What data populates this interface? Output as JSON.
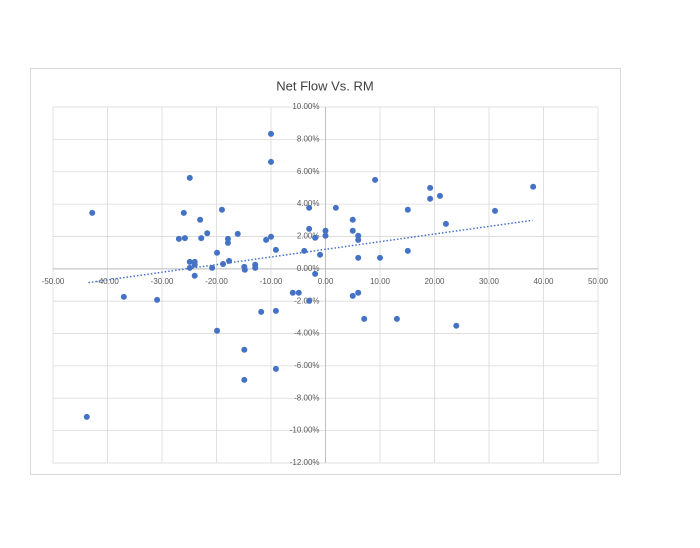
{
  "chart_data": {
    "type": "scatter",
    "title": "Net Flow Vs. RM",
    "xlim": [
      -50,
      50
    ],
    "xticks": [
      {
        "value": -50,
        "label": "-50.00"
      },
      {
        "value": -40,
        "label": "-40.00"
      },
      {
        "value": -30,
        "label": "-30.00"
      },
      {
        "value": -20,
        "label": "-20.00"
      },
      {
        "value": -10,
        "label": "-10.00"
      },
      {
        "value": 0,
        "label": "0.00"
      },
      {
        "value": 10,
        "label": "10.00"
      },
      {
        "value": 20,
        "label": "20.00"
      },
      {
        "value": 30,
        "label": "30.00"
      },
      {
        "value": 40,
        "label": "40.00"
      },
      {
        "value": 50,
        "label": "50.00"
      }
    ],
    "ylim": [
      -12,
      10
    ],
    "yticks": [
      {
        "value": 10,
        "label": "10.00%"
      },
      {
        "value": 8,
        "label": "8.00%"
      },
      {
        "value": 6,
        "label": "6.00%"
      },
      {
        "value": 4,
        "label": "4.00%"
      },
      {
        "value": 2,
        "label": "2.00%"
      },
      {
        "value": 0,
        "label": "0.00%"
      },
      {
        "value": -2,
        "label": "-2.00%"
      },
      {
        "value": -4,
        "label": "-4.00%"
      },
      {
        "value": -6,
        "label": "-6.00%"
      },
      {
        "value": -8,
        "label": "-8.00%"
      },
      {
        "value": -10,
        "label": "-10.00%"
      },
      {
        "value": -12,
        "label": "-12.00%"
      }
    ],
    "grid": true,
    "series": [
      {
        "color": "#4472c4",
        "x": [
          -42.8,
          -43.8,
          -37,
          -30.9,
          -26,
          -26.9,
          -25.8,
          -24.9,
          -24.9,
          -24.9,
          -24,
          -24,
          -24,
          -23,
          -22.8,
          -21.7,
          -20.8,
          -19.9,
          -19.9,
          -19,
          -18.8,
          -17.9,
          -17.9,
          -17.7,
          -16.1,
          -14.9,
          -14.8,
          -14.9,
          -14.9,
          -12.9,
          -12.9,
          -11.8,
          -10.9,
          -10,
          -10,
          -10,
          -9.1,
          -9.1,
          -9.1,
          -6,
          -4.9,
          -3.9,
          -3,
          -3,
          -3,
          -1.9,
          -1.9,
          -1,
          0,
          0,
          1.9,
          5,
          5,
          5,
          6,
          6,
          6,
          6,
          7.1,
          9.1,
          10,
          13.1,
          15.1,
          15.1,
          19.2,
          19.2,
          21,
          22.1,
          24,
          31.1,
          38.1
        ],
        "values": [
          3.46,
          -9.15,
          -1.73,
          -1.92,
          3.46,
          1.85,
          1.9,
          5.62,
          0.43,
          0.06,
          0.43,
          0.25,
          -0.43,
          3.03,
          1.9,
          2.2,
          0.06,
          0.99,
          -3.83,
          3.65,
          0.3,
          1.85,
          1.6,
          0.49,
          2.16,
          0.12,
          -0.06,
          -5.0,
          -6.86,
          0.25,
          0.06,
          -2.66,
          1.79,
          1.98,
          8.34,
          6.61,
          1.17,
          -2.6,
          -6.18,
          -1.48,
          -1.48,
          1.11,
          3.77,
          2.47,
          -1.98,
          1.92,
          -0.31,
          0.87,
          2.35,
          2.04,
          3.77,
          3.03,
          2.35,
          -1.67,
          2.04,
          1.79,
          0.68,
          -1.48,
          -3.09,
          5.5,
          0.68,
          -3.09,
          3.65,
          1.11,
          5.0,
          4.33,
          4.51,
          2.78,
          -3.52,
          3.58,
          5.07
        ]
      }
    ],
    "trendline": {
      "color": "#4472c4",
      "x": [
        -43.5,
        38
      ],
      "values": [
        -0.85,
        3.0
      ]
    }
  }
}
